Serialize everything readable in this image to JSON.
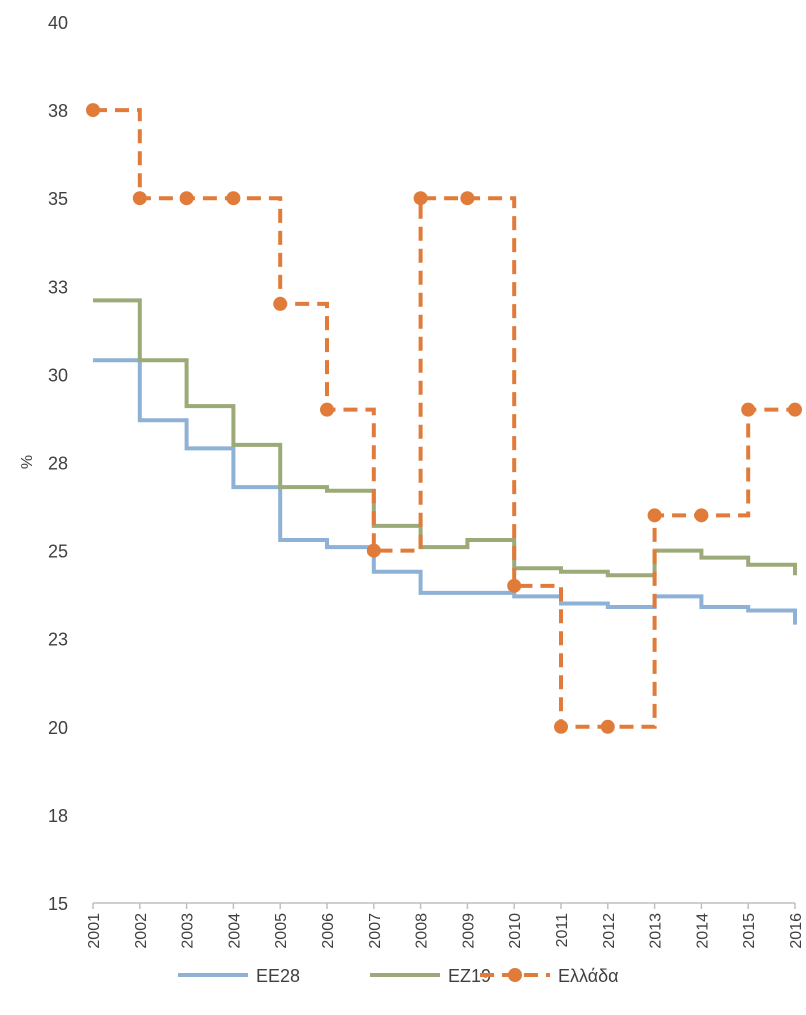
{
  "chart_data": {
    "type": "line",
    "step": true,
    "ylabel": "%",
    "ylim": [
      15,
      40
    ],
    "yticks": [
      "15",
      "18",
      "20",
      "23",
      "25",
      "28",
      "30",
      "33",
      "35",
      "38",
      "40"
    ],
    "categories": [
      "2001",
      "2002",
      "2003",
      "2004",
      "2005",
      "2006",
      "2007",
      "2008",
      "2009",
      "2010",
      "2011",
      "2012",
      "2013",
      "2014",
      "2015",
      "2016"
    ],
    "legend_position": "bottom",
    "series": [
      {
        "name": "ΕΕ28",
        "color": "#8EB1D6",
        "style": "solid",
        "values": [
          30.4,
          28.7,
          27.9,
          26.8,
          25.3,
          25.1,
          24.4,
          23.8,
          23.8,
          23.7,
          23.5,
          23.4,
          23.7,
          23.4,
          23.3,
          22.9
        ]
      },
      {
        "name": "ΕΖ19",
        "color": "#9BAA78",
        "style": "solid",
        "values": [
          32.1,
          30.4,
          29.1,
          28.0,
          26.8,
          26.7,
          25.7,
          25.1,
          25.3,
          24.5,
          24.4,
          24.3,
          25.0,
          24.8,
          24.6,
          24.3
        ]
      },
      {
        "name": "Ελλάδα",
        "color": "#E07B39",
        "style": "dashed",
        "markers": true,
        "values": [
          37.5,
          35.0,
          35.0,
          35.0,
          32.0,
          29.0,
          25.0,
          35.0,
          35.0,
          24.0,
          20.0,
          20.0,
          26.0,
          26.0,
          29.0,
          29.0
        ]
      }
    ]
  }
}
